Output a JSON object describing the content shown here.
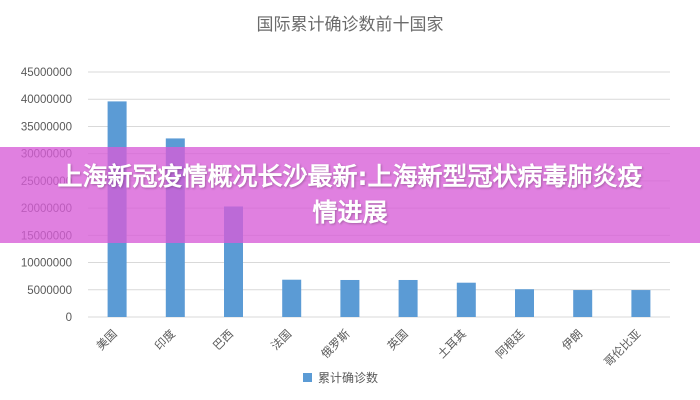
{
  "chart_data": {
    "type": "bar",
    "title": "国际累计确诊数前十国家",
    "categories": [
      "美国",
      "印度",
      "巴西",
      "法国",
      "俄罗斯",
      "英国",
      "土耳其",
      "阿根廷",
      "伊朗",
      "哥伦比亚"
    ],
    "series": [
      {
        "name": "累计确诊数",
        "values": [
          39600000,
          32800000,
          20300000,
          6850000,
          6800000,
          6800000,
          6300000,
          5100000,
          4950000,
          4950000
        ]
      }
    ],
    "yticks": [
      "0",
      "5000000",
      "10000000",
      "15000000",
      "20000000",
      "25000000",
      "30000000",
      "35000000",
      "40000000",
      "45000000"
    ],
    "ylim": [
      0,
      45000000
    ],
    "grid": true,
    "legend_position": "bottom",
    "bar_color": "#5b9bd5"
  },
  "overlay": {
    "text": "上海新冠疫情概况长沙最新:上海新型冠状病毒肺炎疫情进展",
    "color": "#d75cd7"
  }
}
